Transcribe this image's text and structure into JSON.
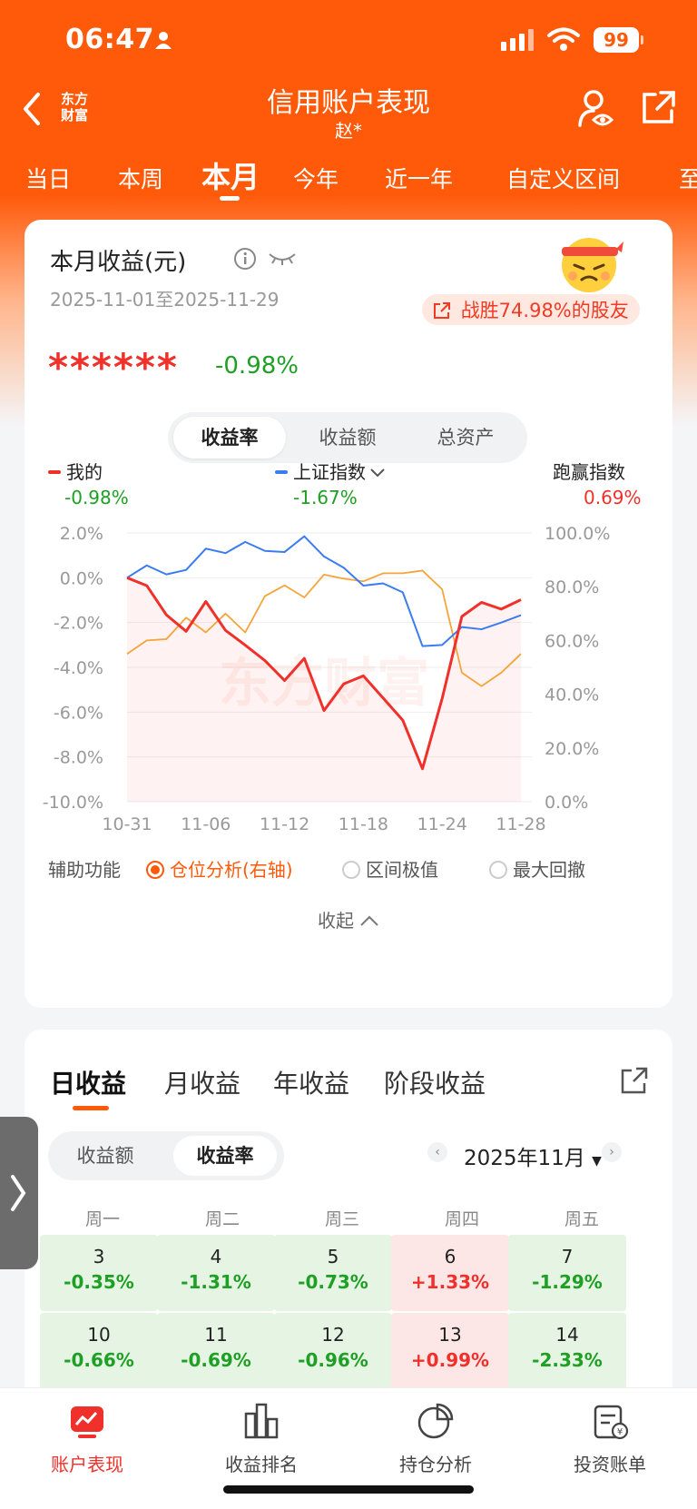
{
  "status_bar": {
    "time": "06:47",
    "battery": "99"
  },
  "nav": {
    "logo_line1": "东方",
    "logo_line2": "财富",
    "title": "信用账户表现",
    "subtitle": "赵*"
  },
  "period_tabs": [
    "当日",
    "本周",
    "本月",
    "今年",
    "近一年",
    "自定义区间",
    "至"
  ],
  "card": {
    "title": "本月收益(元)",
    "date_range": "2025-11-01至2025-11-29",
    "beat_text": "战胜74.98%的股友",
    "hidden_amount": "******",
    "return_pct": "-0.98%",
    "segment": [
      "收益率",
      "收益额",
      "总资产"
    ]
  },
  "legend": {
    "mine_label": "我的",
    "mine_value": "-0.98%",
    "index_label": "上证指数",
    "index_value": "-1.67%",
    "beat_label": "跑赢指数",
    "beat_value": "0.69%"
  },
  "colors": {
    "brand": "#ff5a0a",
    "mine": "#f0302a",
    "index": "#3b7cf0",
    "position": "#f5a43a",
    "up": "#f0302a",
    "down": "#1ea024"
  },
  "chart_data": {
    "type": "line",
    "x": [
      "10-31",
      "11-03",
      "11-04",
      "11-05",
      "11-06",
      "11-07",
      "11-10",
      "11-11",
      "11-12",
      "11-13",
      "11-14",
      "11-17",
      "11-18",
      "11-19",
      "11-20",
      "11-21",
      "11-24",
      "11-25",
      "11-26",
      "11-27",
      "11-28"
    ],
    "x_ticks": [
      "10-31",
      "11-06",
      "11-12",
      "11-18",
      "11-24",
      "11-28"
    ],
    "y_left": {
      "ticks": [
        "2.0%",
        "0.0%",
        "-2.0%",
        "-4.0%",
        "-6.0%",
        "-8.0%",
        "-10.0%"
      ],
      "range": [
        -10,
        2
      ]
    },
    "y_right": {
      "ticks": [
        "100.0%",
        "80.0%",
        "60.0%",
        "40.0%",
        "20.0%",
        "0.0%"
      ],
      "range": [
        0,
        100
      ]
    },
    "watermark": "东方财富",
    "series": [
      {
        "name": "我的",
        "axis": "left",
        "values": [
          0.0,
          -0.35,
          -1.66,
          -2.39,
          -1.06,
          -2.35,
          -3.01,
          -3.7,
          -4.59,
          -3.6,
          -5.93,
          -4.74,
          -4.38,
          -5.37,
          -6.36,
          -8.53,
          -5.39,
          -1.73,
          -1.1,
          -1.4,
          -0.98
        ]
      },
      {
        "name": "上证指数",
        "axis": "left",
        "values": [
          0.0,
          0.55,
          0.15,
          0.35,
          1.3,
          1.1,
          1.6,
          1.2,
          1.15,
          1.85,
          0.95,
          0.45,
          -0.35,
          -0.25,
          -0.65,
          -3.05,
          -3.0,
          -2.2,
          -2.3,
          -2.0,
          -1.67
        ]
      },
      {
        "name": "仓位",
        "axis": "right",
        "values": [
          55.0,
          60.0,
          60.5,
          68.5,
          63.0,
          70.0,
          63.0,
          76.5,
          80.5,
          76.0,
          84.5,
          83.0,
          82.0,
          85.0,
          85.0,
          86.0,
          79.0,
          48.0,
          43.0,
          48.0,
          55.0
        ]
      }
    ]
  },
  "aux": {
    "label": "辅助功能",
    "opt1": "仓位分析(右轴)",
    "opt2": "区间极值",
    "opt3": "最大回撤",
    "collapse": "收起"
  },
  "returns": {
    "tabs": [
      "日收益",
      "月收益",
      "年收益",
      "阶段收益"
    ],
    "segment": [
      "收益额",
      "收益率"
    ],
    "month": "2025年11月",
    "weekdays": [
      "周一",
      "周二",
      "周三",
      "周四",
      "周五"
    ],
    "days": [
      {
        "d": "3",
        "v": "-0.35%",
        "s": "neg"
      },
      {
        "d": "4",
        "v": "-1.31%",
        "s": "neg"
      },
      {
        "d": "5",
        "v": "-0.73%",
        "s": "neg"
      },
      {
        "d": "6",
        "v": "+1.33%",
        "s": "pos"
      },
      {
        "d": "7",
        "v": "-1.29%",
        "s": "neg"
      },
      {
        "d": "10",
        "v": "-0.66%",
        "s": "neg"
      },
      {
        "d": "11",
        "v": "-0.69%",
        "s": "neg"
      },
      {
        "d": "12",
        "v": "-0.96%",
        "s": "neg"
      },
      {
        "d": "13",
        "v": "+0.99%",
        "s": "pos"
      },
      {
        "d": "14",
        "v": "-2.33%",
        "s": "neg"
      }
    ]
  },
  "bottom_nav": [
    "账户表现",
    "收益排名",
    "持仓分析",
    "投资账单"
  ]
}
